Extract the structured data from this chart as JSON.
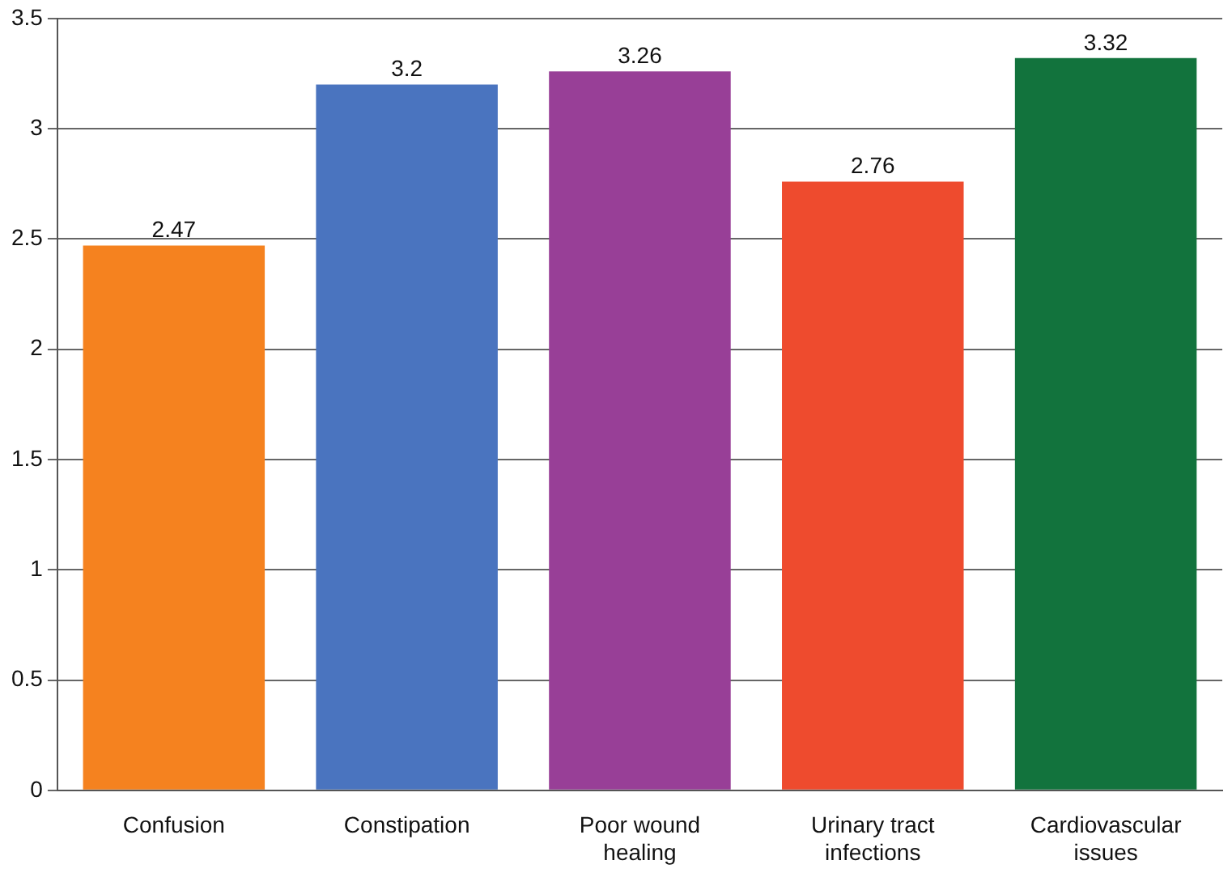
{
  "chart_data": {
    "type": "bar",
    "categories": [
      "Confusion",
      "Constipation",
      "Poor wound healing",
      "Urinary tract infections",
      "Cardiovascular issues"
    ],
    "values": [
      2.47,
      3.2,
      3.26,
      2.76,
      3.32
    ],
    "colors": [
      "#f5821f",
      "#4a74bf",
      "#983f97",
      "#ee4b2e",
      "#12733d"
    ],
    "ylim": [
      0,
      3.5
    ],
    "yticks": [
      0,
      0.5,
      1,
      1.5,
      2,
      2.5,
      3,
      3.5
    ],
    "grid": "y",
    "legend": false,
    "data_labels": true
  }
}
